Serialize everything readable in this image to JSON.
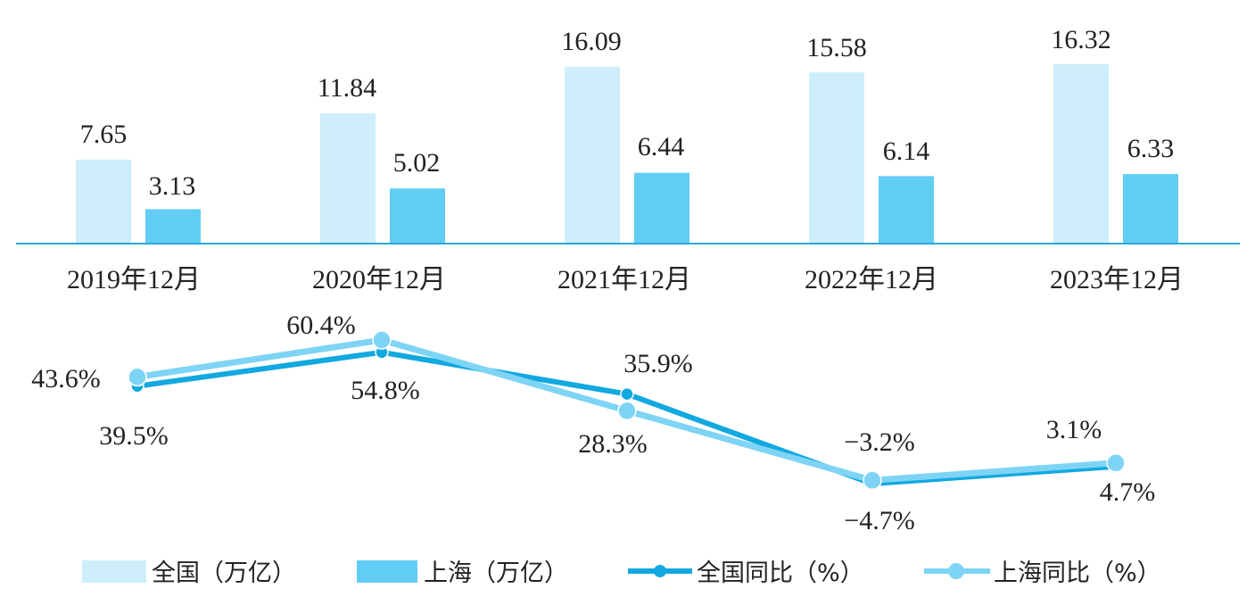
{
  "chart_data": [
    {
      "type": "bar",
      "categories": [
        "2019年12月",
        "2020年12月",
        "2021年12月",
        "2022年12月",
        "2023年12月"
      ],
      "series": [
        {
          "name": "全国（万亿）",
          "values": [
            7.65,
            11.84,
            16.09,
            15.58,
            16.32
          ],
          "color": "#cdeefa"
        },
        {
          "name": "上海（万亿）",
          "values": [
            3.13,
            5.02,
            6.44,
            6.14,
            6.33
          ],
          "color": "#61cdf3"
        }
      ],
      "value_labels": {
        "全国（万亿）": [
          "7.65",
          "11.84",
          "16.09",
          "15.58",
          "16.32"
        ],
        "上海（万亿）": [
          "3.13",
          "5.02",
          "6.44",
          "6.14",
          "6.33"
        ]
      },
      "ylim": [
        0,
        16.32
      ],
      "axis_color": "#27a8dd"
    },
    {
      "type": "line",
      "categories": [
        "2019年12月",
        "2020年12月",
        "2021年12月",
        "2022年12月",
        "2023年12月"
      ],
      "series": [
        {
          "name": "全国同比（%）",
          "values": [
            39.5,
            54.8,
            35.9,
            -4.7,
            3.1
          ],
          "color": "#12a8e0"
        },
        {
          "name": "上海同比（%）",
          "values": [
            43.6,
            60.4,
            28.3,
            -3.2,
            4.7
          ],
          "color": "#7ed4f5"
        }
      ],
      "point_labels": [
        "43.6%",
        "39.5%",
        "60.4%",
        "54.8%",
        "35.9%",
        "28.3%",
        "−3.2%",
        "−4.7%",
        "3.1%",
        "4.7%"
      ],
      "ylim": [
        -4.7,
        60.4
      ]
    }
  ]
}
